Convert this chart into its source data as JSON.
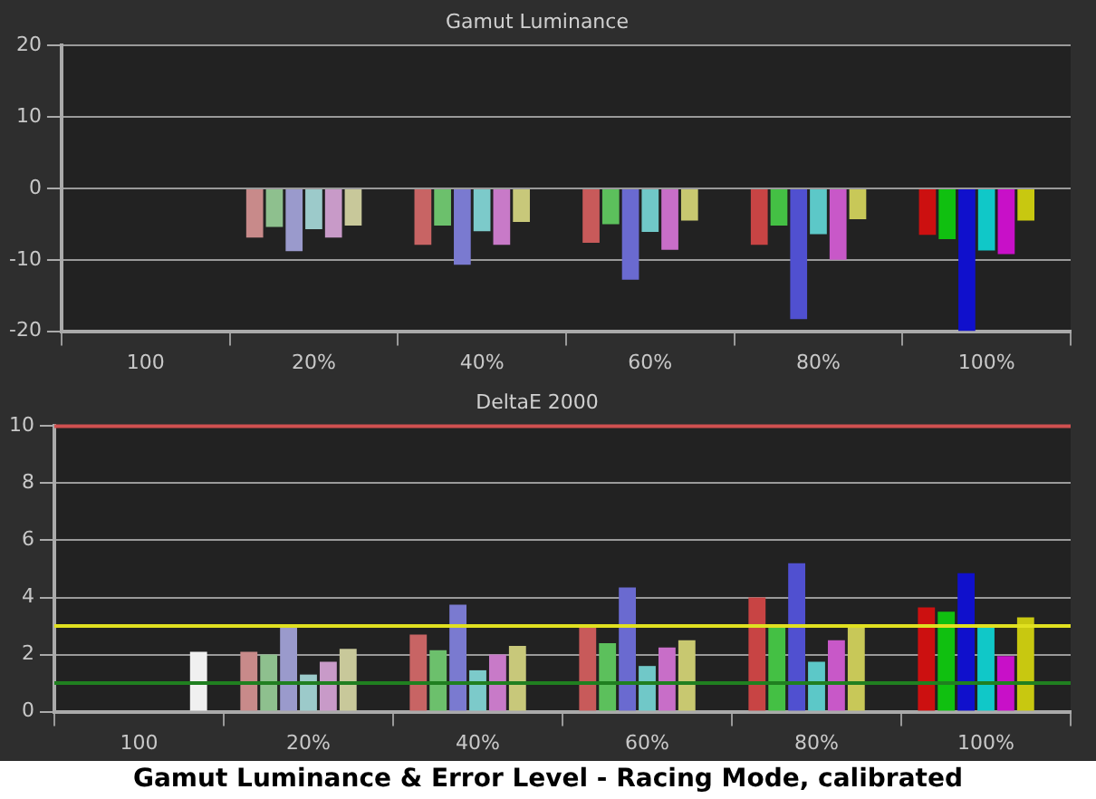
{
  "chart_data": [
    {
      "type": "bar",
      "title": "Gamut Luminance",
      "categories": [
        "100",
        "20%",
        "40%",
        "60%",
        "80%",
        "100%"
      ],
      "ylim": [
        -20,
        20
      ],
      "yticks": [
        -20,
        -10,
        0,
        10,
        20
      ],
      "grid": "y",
      "legend": false,
      "series": [
        {
          "colors": [
            "#c88a8a",
            "#c88a8a",
            "#c86464",
            "#c85a5a",
            "#c84444",
            "#cc1010"
          ],
          "values": [
            null,
            -6.9,
            -7.9,
            -7.6,
            -7.9,
            -6.5
          ]
        },
        {
          "colors": [
            "#8ec08e",
            "#8ec08e",
            "#6cc06c",
            "#5cc05c",
            "#44c044",
            "#10c010"
          ],
          "values": [
            null,
            -5.4,
            -5.2,
            -5.0,
            -5.2,
            -7.1
          ]
        },
        {
          "colors": [
            "#9a9acc",
            "#9a9acc",
            "#7a7ad0",
            "#6a6ad0",
            "#5050d0",
            "#1010cc"
          ],
          "values": [
            null,
            -8.8,
            -10.7,
            -12.8,
            -18.3,
            -20
          ]
        },
        {
          "colors": [
            "#9ccaca",
            "#9ccaca",
            "#7ccaca",
            "#70c8c8",
            "#5cc8c8",
            "#10c8c8"
          ],
          "values": [
            null,
            -5.7,
            -6.0,
            -6.1,
            -6.4,
            -8.7
          ]
        },
        {
          "colors": [
            "#c89ac8",
            "#c89ac8",
            "#c87ac8",
            "#c86ec8",
            "#c858c8",
            "#c810c8"
          ],
          "values": [
            null,
            -6.9,
            -7.9,
            -8.6,
            -10.0,
            -9.2
          ]
        },
        {
          "colors": [
            "#c8c89a",
            "#c8c89a",
            "#c8c87a",
            "#c8c870",
            "#c8c858",
            "#c8c810"
          ],
          "values": [
            null,
            -5.2,
            -4.7,
            -4.5,
            -4.3,
            -4.5
          ]
        },
        {
          "color": "#f0f0f0",
          "values": [
            0,
            null,
            null,
            null,
            null,
            null
          ]
        }
      ]
    },
    {
      "type": "bar",
      "title": "DeltaE 2000",
      "categories": [
        "100",
        "20%",
        "40%",
        "60%",
        "80%",
        "100%"
      ],
      "ylim": [
        0,
        10
      ],
      "yticks": [
        0,
        2,
        4,
        6,
        8,
        10
      ],
      "grid": "y",
      "legend": false,
      "ref_lines": [
        {
          "axis": "y",
          "value": 10,
          "color": "#d05050"
        },
        {
          "axis": "y",
          "value": 3,
          "color": "#e0e020"
        },
        {
          "axis": "y",
          "value": 1,
          "color": "#208020"
        }
      ],
      "annotations": [
        "Gamut Luminance & Error Level - Racing Mode, calibrated"
      ],
      "series": [
        {
          "colors": [
            "#c88a8a",
            "#c88a8a",
            "#c86464",
            "#c85a5a",
            "#c84444",
            "#cc1010"
          ],
          "values": [
            null,
            2.1,
            2.7,
            2.95,
            4.0,
            3.65
          ]
        },
        {
          "colors": [
            "#8ec08e",
            "#8ec08e",
            "#6cc06c",
            "#5cc05c",
            "#44c044",
            "#10c010"
          ],
          "values": [
            null,
            2.0,
            2.15,
            2.4,
            3.0,
            3.5
          ]
        },
        {
          "colors": [
            "#9a9acc",
            "#9a9acc",
            "#7a7ad0",
            "#6a6ad0",
            "#5050d0",
            "#1010cc"
          ],
          "values": [
            null,
            3.0,
            3.75,
            4.35,
            5.2,
            4.85
          ]
        },
        {
          "colors": [
            "#9ccaca",
            "#9ccaca",
            "#7ccaca",
            "#70c8c8",
            "#5cc8c8",
            "#10c8c8"
          ],
          "values": [
            null,
            1.3,
            1.45,
            1.6,
            1.75,
            2.95
          ]
        },
        {
          "colors": [
            "#c89ac8",
            "#c89ac8",
            "#c87ac8",
            "#c86ec8",
            "#c858c8",
            "#c810c8"
          ],
          "values": [
            null,
            1.75,
            2.0,
            2.25,
            2.5,
            1.95
          ]
        },
        {
          "colors": [
            "#c8c89a",
            "#c8c89a",
            "#c8c87a",
            "#c8c870",
            "#c8c858",
            "#c8c810"
          ],
          "values": [
            null,
            2.2,
            2.3,
            2.5,
            3.0,
            3.3
          ]
        },
        {
          "color": "#f0f0f0",
          "values": [
            2.1,
            null,
            null,
            null,
            null,
            null
          ]
        }
      ]
    }
  ]
}
